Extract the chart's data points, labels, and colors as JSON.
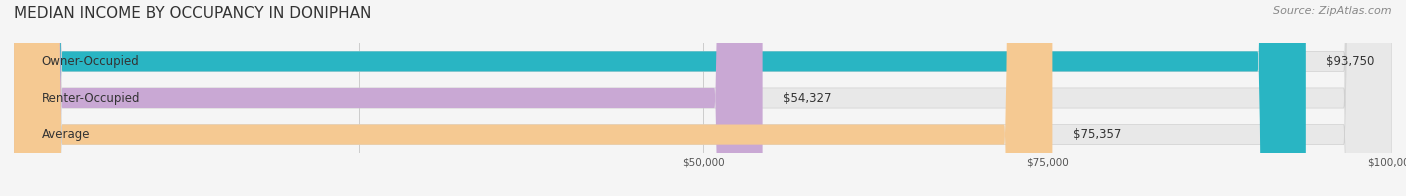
{
  "title": "MEDIAN INCOME BY OCCUPANCY IN DONIPHAN",
  "source": "Source: ZipAtlas.com",
  "categories": [
    "Owner-Occupied",
    "Renter-Occupied",
    "Average"
  ],
  "values": [
    93750,
    54327,
    75357
  ],
  "bar_colors": [
    "#29b5c3",
    "#c9a8d4",
    "#f5c992"
  ],
  "value_labels": [
    "$93,750",
    "$54,327",
    "$75,357"
  ],
  "xlim": [
    0,
    100000
  ],
  "background_color": "#f5f5f5",
  "bar_background_color": "#e8e8e8",
  "title_fontsize": 11,
  "source_fontsize": 8,
  "label_fontsize": 8.5,
  "value_fontsize": 8.5,
  "bar_height": 0.55
}
